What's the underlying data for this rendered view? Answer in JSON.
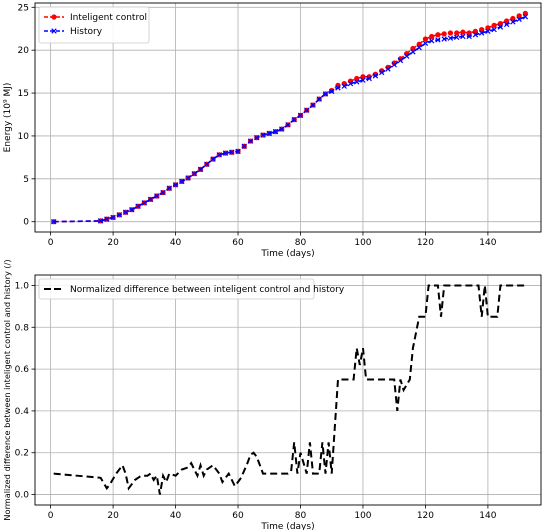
{
  "chart_data": [
    {
      "type": "line",
      "title": "",
      "xlabel": "Time (days)",
      "ylabel": "Energy (10⁹ MJ)",
      "xlim": [
        -5,
        157
      ],
      "ylim": [
        -1.2,
        25.5
      ],
      "xticks": [
        0,
        20,
        40,
        60,
        80,
        100,
        120,
        140
      ],
      "yticks": [
        0,
        5,
        10,
        15,
        20,
        25
      ],
      "grid": true,
      "legend_position": "top-left",
      "series": [
        {
          "name": "Inteligent control",
          "color": "#ff0000",
          "linestyle": "dashed",
          "marker": "circle",
          "x": [
            1,
            16,
            18,
            20,
            22,
            24,
            26,
            28,
            30,
            32,
            34,
            36,
            38,
            40,
            42,
            44,
            46,
            48,
            50,
            52,
            54,
            56,
            58,
            60,
            62,
            64,
            66,
            68,
            70,
            72,
            74,
            76,
            78,
            80,
            82,
            84,
            86,
            88,
            90,
            92,
            94,
            96,
            98,
            100,
            102,
            104,
            106,
            108,
            110,
            112,
            114,
            116,
            118,
            120,
            122,
            124,
            126,
            128,
            130,
            132,
            134,
            136,
            138,
            140,
            142,
            144,
            146,
            148,
            150,
            152
          ],
          "y": [
            0,
            0.1,
            0.3,
            0.5,
            0.8,
            1.1,
            1.4,
            1.8,
            2.2,
            2.6,
            3.0,
            3.4,
            3.9,
            4.3,
            4.7,
            5.1,
            5.6,
            6.1,
            6.7,
            7.3,
            7.8,
            8.0,
            8.1,
            8.2,
            8.8,
            9.4,
            9.8,
            10.1,
            10.3,
            10.5,
            10.8,
            11.3,
            11.9,
            12.4,
            13.0,
            13.6,
            14.3,
            14.9,
            15.3,
            15.9,
            16.1,
            16.4,
            16.7,
            16.9,
            16.9,
            17.2,
            17.6,
            18.0,
            18.5,
            19.0,
            19.6,
            20.2,
            20.7,
            21.3,
            21.6,
            21.8,
            21.9,
            22.0,
            22.0,
            22.1,
            22.0,
            22.2,
            22.4,
            22.6,
            22.9,
            23.1,
            23.4,
            23.7,
            24.0,
            24.3
          ]
        },
        {
          "name": "History",
          "color": "#0000ff",
          "linestyle": "dashed",
          "marker": "x",
          "x": [
            1,
            16,
            18,
            20,
            22,
            24,
            26,
            28,
            30,
            32,
            34,
            36,
            38,
            40,
            42,
            44,
            46,
            48,
            50,
            52,
            54,
            56,
            58,
            60,
            62,
            64,
            66,
            68,
            70,
            72,
            74,
            76,
            78,
            80,
            82,
            84,
            86,
            88,
            90,
            92,
            94,
            96,
            98,
            100,
            102,
            104,
            106,
            108,
            110,
            112,
            114,
            116,
            118,
            120,
            122,
            124,
            126,
            128,
            130,
            132,
            134,
            136,
            138,
            140,
            142,
            144,
            146,
            148,
            150,
            152
          ],
          "y": [
            0,
            0.1,
            0.3,
            0.5,
            0.8,
            1.1,
            1.4,
            1.8,
            2.2,
            2.6,
            3.0,
            3.4,
            3.9,
            4.3,
            4.7,
            5.1,
            5.6,
            6.1,
            6.7,
            7.3,
            7.8,
            8.0,
            8.1,
            8.2,
            8.8,
            9.4,
            9.8,
            10.1,
            10.3,
            10.5,
            10.8,
            11.3,
            11.9,
            12.4,
            13.0,
            13.6,
            14.3,
            14.9,
            15.2,
            15.6,
            15.8,
            16.1,
            16.3,
            16.5,
            16.7,
            17.0,
            17.4,
            17.8,
            18.3,
            18.8,
            19.3,
            19.8,
            20.3,
            20.8,
            21.1,
            21.2,
            21.3,
            21.4,
            21.5,
            21.6,
            21.6,
            21.8,
            22.0,
            22.2,
            22.4,
            22.7,
            23.0,
            23.3,
            23.6,
            23.9
          ]
        }
      ]
    },
    {
      "type": "line",
      "title": "",
      "xlabel": "Time (days)",
      "ylabel": "Normalized difference between inteligent control and history (/)",
      "xlim": [
        -5,
        157
      ],
      "ylim": [
        -0.05,
        1.05
      ],
      "xticks": [
        0,
        20,
        40,
        60,
        80,
        100,
        120,
        140
      ],
      "yticks": [
        0.0,
        0.2,
        0.4,
        0.6,
        0.8,
        1.0
      ],
      "grid": true,
      "legend_position": "top-left",
      "series": [
        {
          "name": "Normalized difference between inteligent control and history",
          "color": "#000000",
          "linestyle": "dashed",
          "x": [
            1,
            16,
            18,
            19,
            21,
            23,
            24,
            25,
            27,
            29,
            31,
            32,
            33,
            34,
            35,
            36,
            37,
            38,
            40,
            42,
            44,
            45,
            46,
            47,
            48,
            49,
            50,
            52,
            54,
            55,
            57,
            59,
            61,
            63,
            64,
            65,
            66,
            68,
            70,
            72,
            74,
            76,
            77,
            78,
            79,
            80,
            82,
            83,
            84,
            86,
            87,
            88,
            89,
            90,
            92,
            97,
            98,
            99,
            100,
            101,
            102,
            106,
            108,
            110,
            111,
            112,
            113,
            115,
            116,
            118,
            119,
            120,
            121,
            122,
            124,
            125,
            126,
            127,
            130,
            134,
            136,
            137,
            138,
            139,
            140,
            142,
            143,
            144,
            145,
            147,
            150,
            152
          ],
          "y": [
            0.1,
            0.08,
            0.03,
            0.05,
            0.1,
            0.14,
            0.1,
            0.03,
            0.07,
            0.09,
            0.09,
            0.1,
            0.07,
            0.09,
            0.0,
            0.09,
            0.06,
            0.1,
            0.09,
            0.12,
            0.13,
            0.15,
            0.12,
            0.09,
            0.14,
            0.09,
            0.12,
            0.14,
            0.1,
            0.06,
            0.1,
            0.04,
            0.08,
            0.15,
            0.19,
            0.2,
            0.18,
            0.1,
            0.1,
            0.1,
            0.1,
            0.1,
            0.11,
            0.25,
            0.1,
            0.2,
            0.1,
            0.25,
            0.1,
            0.1,
            0.25,
            0.1,
            0.25,
            0.1,
            0.55,
            0.55,
            0.7,
            0.62,
            0.7,
            0.55,
            0.55,
            0.55,
            0.55,
            0.55,
            0.4,
            0.55,
            0.5,
            0.55,
            0.7,
            0.85,
            0.85,
            0.85,
            1.0,
            1.0,
            1.0,
            0.85,
            1.0,
            1.0,
            1.0,
            1.0,
            1.0,
            1.0,
            0.85,
            1.0,
            0.85,
            0.85,
            0.85,
            1.0,
            1.0,
            1.0,
            1.0,
            1.0
          ]
        }
      ]
    }
  ]
}
